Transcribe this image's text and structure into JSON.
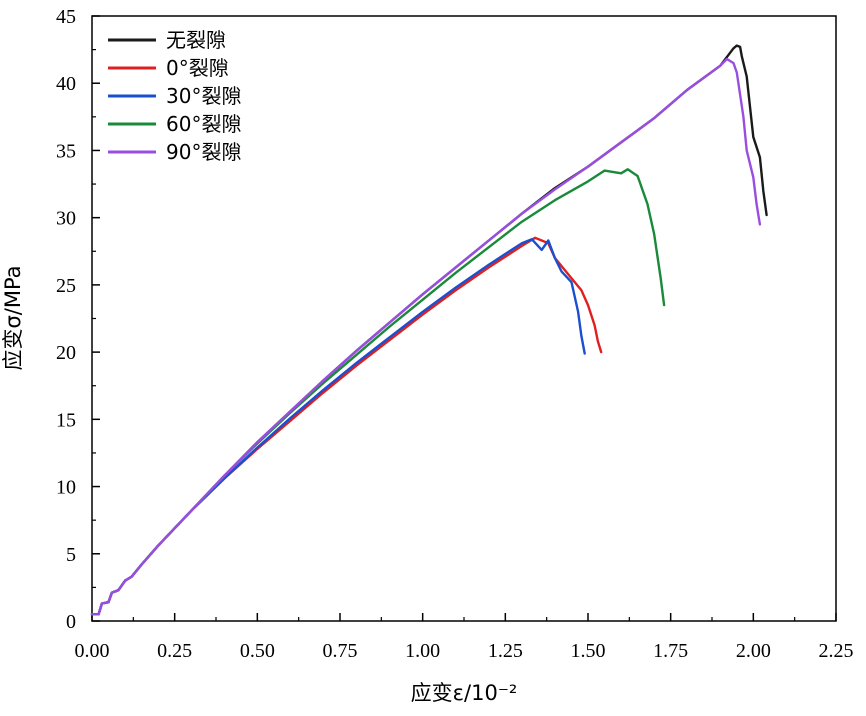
{
  "chart_data": {
    "type": "line",
    "title": "",
    "xlabel": "应变ε/10⁻²",
    "ylabel": "应变σ/MPa",
    "xlim": [
      0,
      2.25
    ],
    "ylim": [
      0,
      45
    ],
    "xticks": [
      "0.00",
      "0.25",
      "0.50",
      "0.75",
      "1.00",
      "1.25",
      "1.50",
      "1.75",
      "2.00",
      "2.25"
    ],
    "yticks": [
      "0",
      "5",
      "10",
      "15",
      "20",
      "25",
      "30",
      "35",
      "40",
      "45"
    ],
    "grid": false,
    "legend_position": "top-left",
    "series": [
      {
        "name": "无裂隙",
        "color": "#1a1a1a",
        "points": [
          [
            0,
            0.5
          ],
          [
            0.02,
            0.5
          ],
          [
            0.03,
            1.3
          ],
          [
            0.05,
            1.4
          ],
          [
            0.06,
            2.1
          ],
          [
            0.08,
            2.3
          ],
          [
            0.1,
            3.0
          ],
          [
            0.12,
            3.3
          ],
          [
            0.15,
            4.2
          ],
          [
            0.2,
            5.6
          ],
          [
            0.25,
            6.9
          ],
          [
            0.3,
            8.2
          ],
          [
            0.4,
            10.8
          ],
          [
            0.5,
            13.3
          ],
          [
            0.6,
            15.6
          ],
          [
            0.7,
            17.9
          ],
          [
            0.8,
            20.1
          ],
          [
            0.9,
            22.2
          ],
          [
            1.0,
            24.3
          ],
          [
            1.1,
            26.3
          ],
          [
            1.2,
            28.3
          ],
          [
            1.3,
            30.3
          ],
          [
            1.4,
            32.2
          ],
          [
            1.5,
            33.8
          ],
          [
            1.6,
            35.6
          ],
          [
            1.7,
            37.4
          ],
          [
            1.8,
            39.5
          ],
          [
            1.9,
            41.3
          ],
          [
            1.94,
            42.6
          ],
          [
            1.95,
            42.8
          ],
          [
            1.96,
            42.7
          ],
          [
            1.965,
            42.0
          ],
          [
            1.98,
            40.5
          ],
          [
            2.0,
            36.0
          ],
          [
            2.02,
            34.5
          ],
          [
            2.03,
            32.0
          ],
          [
            2.04,
            30.2
          ]
        ]
      },
      {
        "name": "0°裂隙",
        "color": "#e02020",
        "points": [
          [
            0,
            0.5
          ],
          [
            0.02,
            0.5
          ],
          [
            0.03,
            1.3
          ],
          [
            0.05,
            1.4
          ],
          [
            0.06,
            2.1
          ],
          [
            0.08,
            2.3
          ],
          [
            0.1,
            3.0
          ],
          [
            0.12,
            3.3
          ],
          [
            0.15,
            4.2
          ],
          [
            0.2,
            5.6
          ],
          [
            0.25,
            6.9
          ],
          [
            0.3,
            8.2
          ],
          [
            0.4,
            10.6
          ],
          [
            0.5,
            12.8
          ],
          [
            0.6,
            14.9
          ],
          [
            0.7,
            17.0
          ],
          [
            0.8,
            19.0
          ],
          [
            0.9,
            20.9
          ],
          [
            1.0,
            22.8
          ],
          [
            1.1,
            24.6
          ],
          [
            1.2,
            26.3
          ],
          [
            1.3,
            27.9
          ],
          [
            1.34,
            28.5
          ],
          [
            1.36,
            28.3
          ],
          [
            1.38,
            28.1
          ],
          [
            1.4,
            27.0
          ],
          [
            1.45,
            25.5
          ],
          [
            1.48,
            24.6
          ],
          [
            1.5,
            23.5
          ],
          [
            1.52,
            22.0
          ],
          [
            1.53,
            20.8
          ],
          [
            1.54,
            20.0
          ]
        ]
      },
      {
        "name": "30°裂隙",
        "color": "#1a4fd0",
        "points": [
          [
            0,
            0.5
          ],
          [
            0.02,
            0.5
          ],
          [
            0.03,
            1.3
          ],
          [
            0.05,
            1.4
          ],
          [
            0.06,
            2.1
          ],
          [
            0.08,
            2.3
          ],
          [
            0.1,
            3.0
          ],
          [
            0.12,
            3.3
          ],
          [
            0.15,
            4.2
          ],
          [
            0.2,
            5.6
          ],
          [
            0.25,
            6.9
          ],
          [
            0.3,
            8.2
          ],
          [
            0.4,
            10.6
          ],
          [
            0.5,
            12.9
          ],
          [
            0.6,
            15.1
          ],
          [
            0.7,
            17.2
          ],
          [
            0.8,
            19.2
          ],
          [
            0.9,
            21.1
          ],
          [
            1.0,
            23.0
          ],
          [
            1.1,
            24.8
          ],
          [
            1.2,
            26.5
          ],
          [
            1.3,
            28.1
          ],
          [
            1.33,
            28.4
          ],
          [
            1.36,
            27.6
          ],
          [
            1.38,
            28.3
          ],
          [
            1.4,
            27.0
          ],
          [
            1.42,
            26.0
          ],
          [
            1.45,
            25.2
          ],
          [
            1.47,
            23.0
          ],
          [
            1.48,
            21.2
          ],
          [
            1.49,
            19.9
          ]
        ]
      },
      {
        "name": "60°裂隙",
        "color": "#1a8a3a",
        "points": [
          [
            0,
            0.5
          ],
          [
            0.02,
            0.5
          ],
          [
            0.03,
            1.3
          ],
          [
            0.05,
            1.4
          ],
          [
            0.06,
            2.1
          ],
          [
            0.08,
            2.3
          ],
          [
            0.1,
            3.0
          ],
          [
            0.12,
            3.3
          ],
          [
            0.15,
            4.2
          ],
          [
            0.2,
            5.6
          ],
          [
            0.25,
            6.9
          ],
          [
            0.3,
            8.2
          ],
          [
            0.4,
            10.8
          ],
          [
            0.5,
            13.2
          ],
          [
            0.6,
            15.5
          ],
          [
            0.7,
            17.7
          ],
          [
            0.8,
            19.8
          ],
          [
            0.9,
            21.9
          ],
          [
            1.0,
            23.9
          ],
          [
            1.1,
            25.9
          ],
          [
            1.2,
            27.8
          ],
          [
            1.3,
            29.7
          ],
          [
            1.4,
            31.3
          ],
          [
            1.5,
            32.7
          ],
          [
            1.55,
            33.5
          ],
          [
            1.6,
            33.3
          ],
          [
            1.62,
            33.6
          ],
          [
            1.65,
            33.1
          ],
          [
            1.68,
            31.0
          ],
          [
            1.7,
            28.8
          ],
          [
            1.72,
            25.5
          ],
          [
            1.73,
            23.5
          ]
        ]
      },
      {
        "name": "90°裂隙",
        "color": "#9a4ee0",
        "points": [
          [
            0,
            0.5
          ],
          [
            0.02,
            0.5
          ],
          [
            0.03,
            1.3
          ],
          [
            0.05,
            1.4
          ],
          [
            0.06,
            2.1
          ],
          [
            0.08,
            2.3
          ],
          [
            0.1,
            3.0
          ],
          [
            0.12,
            3.3
          ],
          [
            0.15,
            4.2
          ],
          [
            0.2,
            5.6
          ],
          [
            0.25,
            6.9
          ],
          [
            0.3,
            8.2
          ],
          [
            0.4,
            10.8
          ],
          [
            0.5,
            13.3
          ],
          [
            0.6,
            15.6
          ],
          [
            0.7,
            17.9
          ],
          [
            0.8,
            20.1
          ],
          [
            0.9,
            22.2
          ],
          [
            1.0,
            24.3
          ],
          [
            1.1,
            26.3
          ],
          [
            1.2,
            28.3
          ],
          [
            1.3,
            30.3
          ],
          [
            1.4,
            32.1
          ],
          [
            1.5,
            33.8
          ],
          [
            1.6,
            35.6
          ],
          [
            1.7,
            37.4
          ],
          [
            1.8,
            39.5
          ],
          [
            1.9,
            41.3
          ],
          [
            1.92,
            41.8
          ],
          [
            1.94,
            41.5
          ],
          [
            1.95,
            40.8
          ],
          [
            1.97,
            37.5
          ],
          [
            1.98,
            35.0
          ],
          [
            2.0,
            33.0
          ],
          [
            2.01,
            31.0
          ],
          [
            2.02,
            29.5
          ]
        ]
      }
    ]
  }
}
